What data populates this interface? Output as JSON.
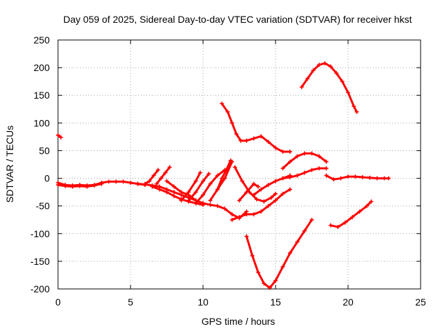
{
  "chart_data": {
    "type": "line",
    "title": "Day 059 of 2025, Sidereal Day-to-day VTEC variation (SDTVAR) for receiver hkst",
    "xlabel": "GPS time / hours",
    "ylabel": "SDTVAR / TECUs",
    "xlim": [
      0,
      25
    ],
    "ylim": [
      -200,
      250
    ],
    "xticks": [
      0,
      5,
      10,
      15,
      20,
      25
    ],
    "yticks": [
      -200,
      -150,
      -100,
      -50,
      0,
      50,
      100,
      150,
      200,
      250
    ],
    "xtick_labels": [
      "0",
      "5",
      "10",
      "15",
      "20",
      "25"
    ],
    "ytick_labels": [
      "-200",
      "-150",
      "-100",
      "-50",
      "0",
      "50",
      "100",
      "150",
      "200",
      "250"
    ],
    "grid": true,
    "marker": "plus",
    "color": "#ff0000",
    "series": [
      {
        "x": [
          0.0,
          0.2
        ],
        "y": [
          78,
          74
        ]
      },
      {
        "x": [
          0.0,
          0.5,
          1.0,
          1.5,
          2.0,
          2.5,
          3.0,
          3.5,
          4.0,
          4.5,
          5.0,
          5.5,
          6.0
        ],
        "y": [
          -8,
          -12,
          -13,
          -12,
          -13,
          -12,
          -8,
          -6,
          -6,
          -6,
          -8,
          -10,
          -12
        ]
      },
      {
        "x": [
          0.0,
          0.5,
          1.0,
          1.5,
          2.0,
          2.5,
          3.0
        ],
        "y": [
          -12,
          -14,
          -15,
          -14,
          -15,
          -13,
          -10
        ]
      },
      {
        "x": [
          5.5,
          6.0,
          6.5,
          7.0,
          7.5,
          8.0,
          8.5,
          9.0,
          9.5,
          10.0,
          10.5,
          11.0,
          11.5,
          12.0,
          12.5,
          13.0
        ],
        "y": [
          -10,
          -11,
          -13,
          -15,
          -20,
          -25,
          -30,
          -35,
          -40,
          -45,
          -48,
          -50,
          -55,
          -65,
          -72,
          -60
        ]
      },
      {
        "x": [
          6.0,
          6.3,
          6.6,
          6.9
        ],
        "y": [
          -10,
          -5,
          5,
          15
        ]
      },
      {
        "x": [
          6.5,
          7.0,
          7.5,
          8.0,
          8.5,
          9.0,
          9.5,
          10.0
        ],
        "y": [
          -15,
          -20,
          -25,
          -32,
          -38,
          -42,
          -45,
          -48
        ]
      },
      {
        "x": [
          6.8,
          7.1,
          7.4,
          7.7
        ],
        "y": [
          -10,
          0,
          10,
          20
        ]
      },
      {
        "x": [
          7.5,
          8.0,
          8.5,
          9.0,
          9.5
        ],
        "y": [
          -5,
          -15,
          -25,
          -30,
          -40
        ]
      },
      {
        "x": [
          8.5,
          9.0,
          9.5,
          9.8
        ],
        "y": [
          -40,
          -25,
          -5,
          10
        ]
      },
      {
        "x": [
          9.0,
          9.5,
          10.0,
          10.4
        ],
        "y": [
          -40,
          -25,
          -5,
          8
        ]
      },
      {
        "x": [
          9.5,
          10.0,
          10.5,
          11.0,
          11.5
        ],
        "y": [
          -45,
          -30,
          -10,
          5,
          15
        ]
      },
      {
        "x": [
          10.5,
          11.0,
          11.5,
          12.0
        ],
        "y": [
          -40,
          -20,
          0,
          30
        ]
      },
      {
        "x": [
          11.0,
          11.3,
          11.6,
          11.9
        ],
        "y": [
          -20,
          0,
          15,
          32
        ]
      },
      {
        "x": [
          11.3,
          11.7,
          12.0,
          12.3,
          12.6,
          13.0,
          13.5,
          14.0,
          14.5,
          15.0,
          15.5,
          16.0
        ],
        "y": [
          135,
          120,
          100,
          80,
          68,
          68,
          72,
          76,
          66,
          55,
          48,
          48
        ]
      },
      {
        "x": [
          12.2,
          12.7,
          13.2,
          13.7,
          14.2,
          14.7,
          15.0
        ],
        "y": [
          20,
          -5,
          -25,
          -38,
          -42,
          -35,
          -28
        ]
      },
      {
        "x": [
          12.0,
          12.5,
          13.0,
          13.5,
          14.0,
          14.5,
          15.0,
          15.5,
          16.0
        ],
        "y": [
          -75,
          -70,
          -65,
          -65,
          -60,
          -50,
          -40,
          -28,
          -20
        ]
      },
      {
        "x": [
          12.5,
          13.0,
          13.5,
          13.8
        ],
        "y": [
          -40,
          -25,
          -10,
          -15
        ]
      },
      {
        "x": [
          13.5,
          14.0,
          14.5,
          15.0,
          15.5,
          16.0
        ],
        "y": [
          -30,
          -20,
          -12,
          -5,
          0,
          5
        ]
      },
      {
        "x": [
          13.0,
          13.4,
          13.8,
          14.2,
          14.6,
          15.0,
          15.5,
          16.0,
          16.5,
          17.0,
          17.5
        ],
        "y": [
          -105,
          -140,
          -170,
          -190,
          -198,
          -185,
          -160,
          -135,
          -115,
          -95,
          -75
        ]
      },
      {
        "x": [
          15.5,
          16.0,
          16.5,
          17.0,
          17.5,
          18.0,
          18.5
        ],
        "y": [
          18,
          30,
          40,
          45,
          45,
          40,
          30
        ]
      },
      {
        "x": [
          15.5,
          16.0,
          16.5,
          17.0,
          17.5,
          18.0,
          18.5
        ],
        "y": [
          0,
          2,
          5,
          10,
          15,
          18,
          18
        ]
      },
      {
        "x": [
          16.8,
          17.2,
          17.6,
          18.0,
          18.4,
          18.8,
          19.2,
          19.6,
          20.0,
          20.4,
          20.6
        ],
        "y": [
          165,
          180,
          195,
          205,
          208,
          202,
          190,
          175,
          155,
          130,
          120
        ]
      },
      {
        "x": [
          18.5,
          19.0,
          19.5,
          20.0,
          20.5,
          21.0,
          21.5,
          22.0,
          22.5,
          22.8
        ],
        "y": [
          5,
          -2,
          0,
          3,
          3,
          2,
          1,
          0,
          0,
          0
        ]
      },
      {
        "x": [
          18.8,
          19.3,
          19.8,
          20.3,
          20.8,
          21.3,
          21.6
        ],
        "y": [
          -85,
          -88,
          -80,
          -70,
          -60,
          -50,
          -42
        ]
      }
    ]
  }
}
